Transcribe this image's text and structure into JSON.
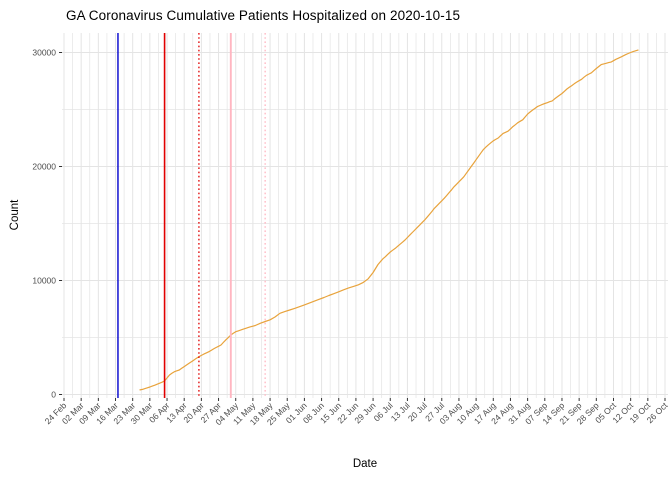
{
  "figure": {
    "title": "GA Coronavirus Cumulative Patients Hospitalized on 2020-10-15",
    "x_axis_title": "Date",
    "y_axis_title": "Count"
  },
  "chart_data": {
    "type": "line",
    "title": "GA Coronavirus Cumulative Patients Hospitalized on 2020-10-15",
    "xlabel": "Date",
    "ylabel": "Count",
    "legend_position": "none",
    "background": "#ffffff",
    "grid": {
      "color": "#e4e4e4",
      "major_x": "weekly",
      "minor_x": "half-week",
      "major_y": [
        0,
        10000,
        20000,
        30000
      ],
      "minor_y": [
        5000,
        15000,
        25000
      ]
    },
    "x_tick_labels": [
      "24 Feb",
      "02 Mar",
      "09 Mar",
      "16 Mar",
      "23 Mar",
      "30 Mar",
      "06 Apr",
      "13 Apr",
      "20 Apr",
      "27 Apr",
      "04 May",
      "11 May",
      "18 May",
      "25 May",
      "01 Jun",
      "08 Jun",
      "15 Jun",
      "22 Jun",
      "29 Jun",
      "06 Jul",
      "13 Jul",
      "20 Jul",
      "27 Jul",
      "03 Aug",
      "10 Aug",
      "17 Aug",
      "24 Aug",
      "31 Aug",
      "07 Sep",
      "14 Sep",
      "21 Sep",
      "28 Sep",
      "05 Oct",
      "12 Oct",
      "19 Oct",
      "26 Oct"
    ],
    "x_tick_interval_days": 7,
    "x_span_days": 245,
    "y_tick_labels": [
      "0",
      "10000",
      "20000",
      "30000"
    ],
    "ylim": [
      0,
      31700
    ],
    "tick_label_color": "#4d4d4d",
    "series": [
      {
        "name": "cumulative-patients-hospitalized",
        "color": "#E8A33C",
        "points_day_count": [
          [
            31,
            400
          ],
          [
            32,
            450
          ],
          [
            33,
            520
          ],
          [
            34,
            590
          ],
          [
            35,
            660
          ],
          [
            36,
            740
          ],
          [
            37,
            820
          ],
          [
            38,
            900
          ],
          [
            39,
            990
          ],
          [
            40,
            1080
          ],
          [
            41,
            1190
          ],
          [
            42,
            1450
          ],
          [
            43,
            1710
          ],
          [
            44,
            1860
          ],
          [
            45,
            2000
          ],
          [
            46,
            2080
          ],
          [
            47,
            2150
          ],
          [
            48,
            2300
          ],
          [
            49,
            2450
          ],
          [
            50,
            2600
          ],
          [
            51,
            2740
          ],
          [
            52,
            2890
          ],
          [
            53,
            3030
          ],
          [
            54,
            3180
          ],
          [
            55,
            3320
          ],
          [
            56,
            3430
          ],
          [
            57,
            3540
          ],
          [
            58,
            3650
          ],
          [
            59,
            3750
          ],
          [
            60,
            3870
          ],
          [
            61,
            4000
          ],
          [
            62,
            4120
          ],
          [
            63,
            4230
          ],
          [
            64,
            4340
          ],
          [
            65,
            4570
          ],
          [
            66,
            4800
          ],
          [
            67,
            5010
          ],
          [
            68,
            5220
          ],
          [
            69,
            5370
          ],
          [
            70,
            5510
          ],
          [
            71,
            5580
          ],
          [
            72,
            5650
          ],
          [
            73,
            5730
          ],
          [
            74,
            5800
          ],
          [
            75,
            5870
          ],
          [
            76,
            5940
          ],
          [
            78,
            6050
          ],
          [
            80,
            6250
          ],
          [
            82,
            6400
          ],
          [
            84,
            6550
          ],
          [
            86,
            6800
          ],
          [
            88,
            7120
          ],
          [
            90,
            7270
          ],
          [
            92,
            7410
          ],
          [
            94,
            7550
          ],
          [
            96,
            7700
          ],
          [
            98,
            7860
          ],
          [
            100,
            8020
          ],
          [
            102,
            8180
          ],
          [
            104,
            8350
          ],
          [
            106,
            8510
          ],
          [
            108,
            8680
          ],
          [
            110,
            8840
          ],
          [
            112,
            9010
          ],
          [
            114,
            9180
          ],
          [
            116,
            9350
          ],
          [
            118,
            9480
          ],
          [
            120,
            9620
          ],
          [
            122,
            9830
          ],
          [
            124,
            10150
          ],
          [
            126,
            10700
          ],
          [
            128,
            11400
          ],
          [
            130,
            11900
          ],
          [
            131,
            12090
          ],
          [
            132,
            12300
          ],
          [
            133,
            12500
          ],
          [
            134,
            12660
          ],
          [
            135,
            12820
          ],
          [
            136,
            13000
          ],
          [
            137,
            13180
          ],
          [
            138,
            13360
          ],
          [
            139,
            13550
          ],
          [
            140,
            13770
          ],
          [
            141,
            14000
          ],
          [
            142,
            14210
          ],
          [
            143,
            14430
          ],
          [
            144,
            14640
          ],
          [
            145,
            14860
          ],
          [
            146,
            15080
          ],
          [
            147,
            15300
          ],
          [
            148,
            15550
          ],
          [
            149,
            15800
          ],
          [
            150,
            16060
          ],
          [
            151,
            16330
          ],
          [
            152,
            16550
          ],
          [
            153,
            16770
          ],
          [
            154,
            16990
          ],
          [
            155,
            17210
          ],
          [
            156,
            17460
          ],
          [
            157,
            17710
          ],
          [
            158,
            17960
          ],
          [
            159,
            18220
          ],
          [
            160,
            18440
          ],
          [
            161,
            18660
          ],
          [
            162,
            18880
          ],
          [
            163,
            19100
          ],
          [
            164,
            19400
          ],
          [
            165,
            19700
          ],
          [
            166,
            20000
          ],
          [
            167,
            20300
          ],
          [
            168,
            20600
          ],
          [
            169,
            20900
          ],
          [
            170,
            21200
          ],
          [
            171,
            21500
          ],
          [
            172,
            21700
          ],
          [
            173,
            21900
          ],
          [
            174,
            22080
          ],
          [
            175,
            22250
          ],
          [
            176,
            22380
          ],
          [
            177,
            22500
          ],
          [
            178,
            22700
          ],
          [
            179,
            22900
          ],
          [
            180,
            23000
          ],
          [
            181,
            23100
          ],
          [
            182,
            23300
          ],
          [
            183,
            23500
          ],
          [
            184,
            23670
          ],
          [
            185,
            23840
          ],
          [
            186,
            23970
          ],
          [
            187,
            24100
          ],
          [
            188,
            24350
          ],
          [
            189,
            24600
          ],
          [
            190,
            24780
          ],
          [
            191,
            24950
          ],
          [
            192,
            25100
          ],
          [
            193,
            25250
          ],
          [
            194,
            25350
          ],
          [
            195,
            25450
          ],
          [
            196,
            25530
          ],
          [
            197,
            25600
          ],
          [
            198,
            25680
          ],
          [
            199,
            25750
          ],
          [
            200,
            25930
          ],
          [
            201,
            26100
          ],
          [
            202,
            26250
          ],
          [
            203,
            26400
          ],
          [
            204,
            26600
          ],
          [
            205,
            26800
          ],
          [
            206,
            26950
          ],
          [
            207,
            27100
          ],
          [
            208,
            27250
          ],
          [
            209,
            27400
          ],
          [
            210,
            27530
          ],
          [
            211,
            27650
          ],
          [
            212,
            27830
          ],
          [
            213,
            28000
          ],
          [
            214,
            28110
          ],
          [
            215,
            28220
          ],
          [
            216,
            28410
          ],
          [
            217,
            28600
          ],
          [
            218,
            28770
          ],
          [
            219,
            28940
          ],
          [
            220,
            29000
          ],
          [
            221,
            29050
          ],
          [
            222,
            29110
          ],
          [
            223,
            29160
          ],
          [
            224,
            29280
          ],
          [
            225,
            29400
          ],
          [
            226,
            29500
          ],
          [
            227,
            29600
          ],
          [
            228,
            29710
          ],
          [
            229,
            29820
          ],
          [
            230,
            29910
          ],
          [
            231,
            30000
          ],
          [
            232,
            30080
          ],
          [
            233,
            30150
          ],
          [
            234,
            30210
          ]
        ]
      }
    ],
    "reference_lines": [
      {
        "name": "blue-solid-vline",
        "day_offset": 22,
        "color": "#0000CD",
        "style": "solid",
        "width": 1.4
      },
      {
        "name": "red-solid-vline",
        "day_offset": 41,
        "color": "#E00000",
        "style": "solid",
        "width": 1.6
      },
      {
        "name": "red-dotted-vline",
        "day_offset": 55,
        "color": "#E00000",
        "style": "dotted",
        "width": 1.3
      },
      {
        "name": "pink-solid-vline",
        "day_offset": 68,
        "color": "#FFB6C1",
        "style": "solid",
        "width": 1.9
      },
      {
        "name": "pink-dotted-vline",
        "day_offset": 82,
        "color": "#FFB6C1",
        "style": "dotted",
        "width": 1.3
      }
    ]
  }
}
